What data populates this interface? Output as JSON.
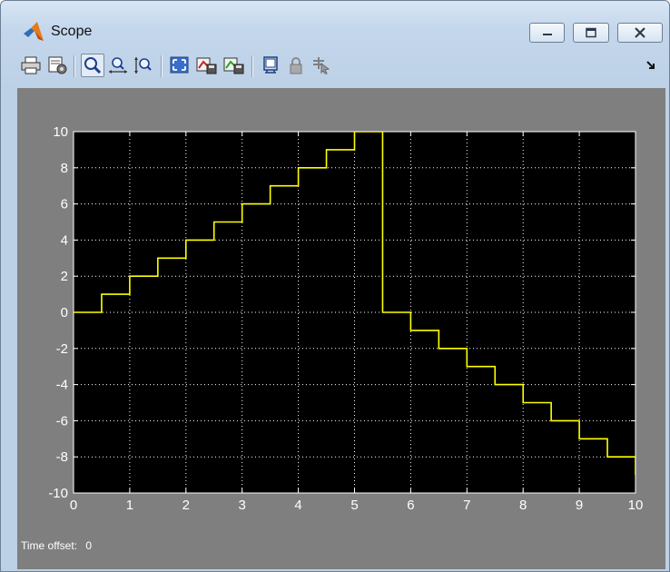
{
  "window": {
    "title": "Scope"
  },
  "status": {
    "label": "Time offset:",
    "value": "0"
  },
  "colors": {
    "plot_background": "#000000",
    "trace": "#ffff00",
    "grid": "#ffffff",
    "figure_background": "#7f7f7f"
  },
  "toolbar": {
    "icons": [
      "print-icon",
      "parameters-icon",
      "zoom-icon",
      "zoom-x-icon",
      "zoom-y-icon",
      "autoscale-icon",
      "save-axes-settings-icon",
      "restore-axes-settings-icon",
      "floating-scope-icon",
      "lock-axes-icon",
      "signal-selection-icon",
      "dock-arrow-icon"
    ]
  },
  "chart_data": {
    "type": "line",
    "title": "",
    "xlabel": "",
    "ylabel": "",
    "xlim": [
      0,
      10
    ],
    "ylim": [
      -10,
      10
    ],
    "xticks": [
      "0",
      "1",
      "2",
      "3",
      "4",
      "5",
      "6",
      "7",
      "8",
      "9",
      "10"
    ],
    "yticks": [
      "10",
      "8",
      "6",
      "4",
      "2",
      "0",
      "-2",
      "-4",
      "-6",
      "-8",
      "-10"
    ],
    "grid": true,
    "series": [
      {
        "step": true,
        "x": [
          0,
          0.5,
          1,
          1.5,
          2,
          2.5,
          3,
          3.5,
          4,
          4.5,
          5,
          5.5,
          6,
          6.5,
          7,
          7.5,
          8,
          8.5,
          9,
          9.5,
          10
        ],
        "y": [
          0,
          1,
          2,
          3,
          4,
          5,
          6,
          7,
          8,
          9,
          10,
          0,
          -1,
          -2,
          -3,
          -4,
          -5,
          -6,
          -7,
          -8,
          -9
        ]
      }
    ]
  }
}
